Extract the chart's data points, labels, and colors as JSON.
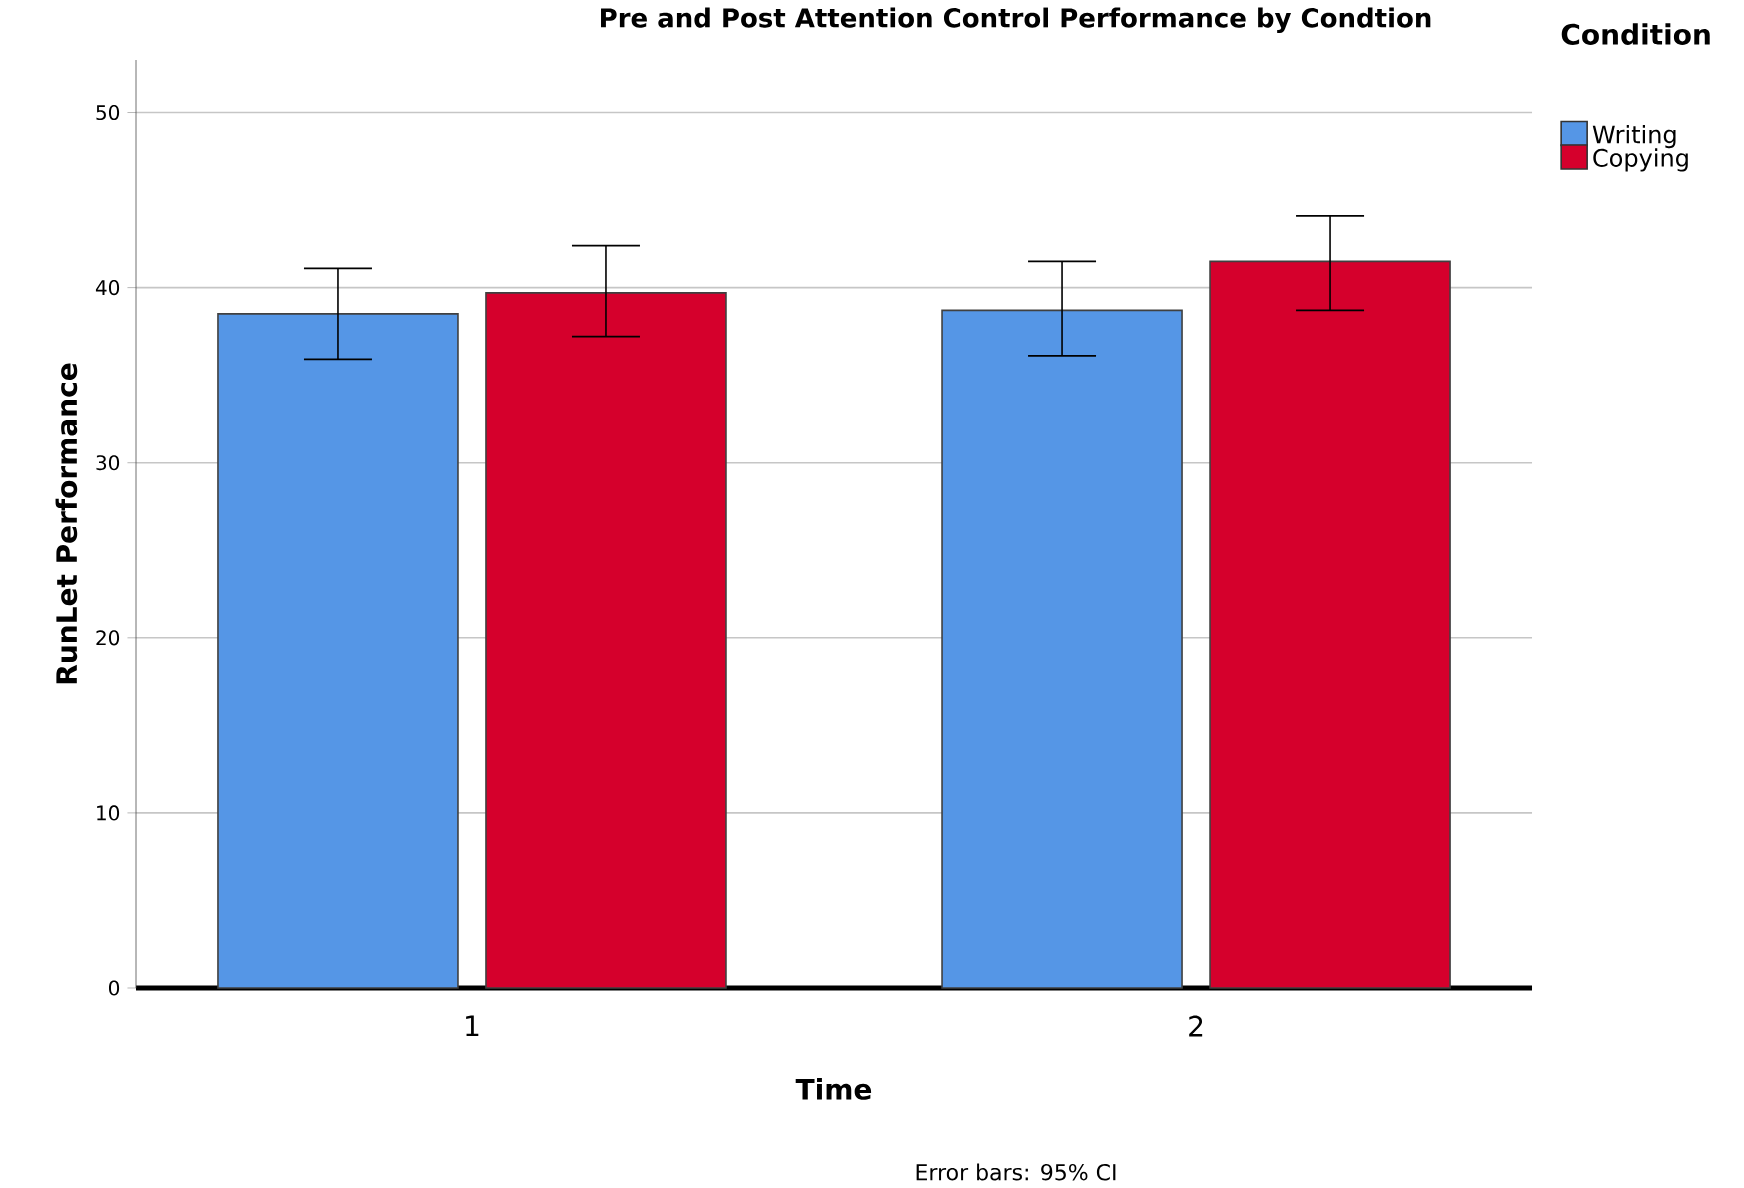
{
  "chart_data": {
    "type": "bar",
    "title": "Pre and Post Attention Control Performance by Condtion",
    "xlabel": "Time",
    "ylabel": "RunLet Performance",
    "legend_title": "Condition",
    "categories": [
      "1",
      "2"
    ],
    "series": [
      {
        "name": "Writing",
        "color": "#5596e6",
        "values": [
          38.5,
          38.7
        ],
        "errors": [
          [
            35.9,
            41.1
          ],
          [
            36.1,
            41.5
          ]
        ]
      },
      {
        "name": "Copying",
        "color": "#d5002c",
        "values": [
          39.7,
          41.5
        ],
        "errors": [
          [
            37.2,
            42.4
          ],
          [
            38.7,
            44.1
          ]
        ]
      }
    ],
    "ylim": [
      0,
      53
    ],
    "yticks": [
      0,
      10,
      20,
      30,
      40,
      50
    ],
    "grid": "y",
    "legend": "top right",
    "annotations": [
      "Error bars: 95% CI"
    ]
  }
}
